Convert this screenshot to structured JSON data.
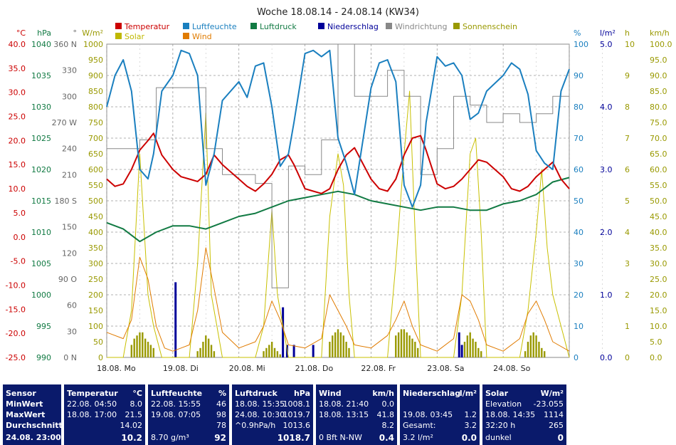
{
  "title": "Woche 18.08.14 - 24.08.14 (KW34)",
  "legend": [
    {
      "label": "Temperatur",
      "color": "#cc0000"
    },
    {
      "label": "Luftfeuchte",
      "color": "#1a7fbf"
    },
    {
      "label": "Luftdruck",
      "color": "#117a43"
    },
    {
      "label": "Niederschlag",
      "color": "#000099"
    },
    {
      "label": "Windrichtung",
      "color": "#888888"
    },
    {
      "label": "Sonnenschein",
      "color": "#999900"
    },
    {
      "label": "Solar",
      "color": "#bfb800"
    },
    {
      "label": "Wind",
      "color": "#e07b00"
    }
  ],
  "axes": {
    "temp": {
      "unit": "°C",
      "color": "#cc0000",
      "ticks": [
        "40.0",
        "35.0",
        "30.0",
        "25.0",
        "20.0",
        "15.0",
        "10.0",
        "5.0",
        "0.0",
        "-5.0",
        "-10.0",
        "-15.0",
        "-20.0",
        "-25.0"
      ]
    },
    "pressure": {
      "unit": "hPa",
      "color": "#117a43",
      "ticks": [
        "1040",
        "1035",
        "1030",
        "1025",
        "1020",
        "1015",
        "1010",
        "1005",
        "1000",
        "995",
        "990"
      ]
    },
    "winddir": {
      "unit": "°",
      "color": "#666666",
      "ticks": [
        "360 N",
        "330",
        "300",
        "270 W",
        "240",
        "210",
        "180 S",
        "150",
        "120",
        "90 O",
        "60",
        "30",
        "0 N"
      ]
    },
    "solar": {
      "unit": "W/m²",
      "color": "#999900",
      "ticks": [
        "1000",
        "950",
        "900",
        "850",
        "800",
        "750",
        "700",
        "650",
        "600",
        "550",
        "500",
        "450",
        "400",
        "350",
        "300",
        "250",
        "200",
        "150",
        "100",
        "50",
        "0"
      ]
    },
    "humidity": {
      "unit": "%",
      "color": "#1a7fbf",
      "ticks": [
        "100",
        "90",
        "80",
        "70",
        "60",
        "50",
        "40",
        "30",
        "20",
        "10",
        "0"
      ]
    },
    "rain": {
      "unit": "l/m²",
      "color": "#000099",
      "ticks": [
        "5.0",
        "4.0",
        "3.0",
        "2.0",
        "1.0",
        "0.0"
      ]
    },
    "sunshine": {
      "unit": "h",
      "color": "#999900",
      "ticks": [
        "10",
        "9",
        "8",
        "7",
        "6",
        "5",
        "4",
        "3",
        "2",
        "1",
        "0"
      ]
    },
    "wind": {
      "unit": "km/h",
      "color": "#999900",
      "ticks": [
        "100.0",
        "95.0",
        "90.0",
        "85.0",
        "80.0",
        "75.0",
        "70.0",
        "65.0",
        "60.0",
        "55.0",
        "50.0",
        "45.0",
        "40.0",
        "35.0",
        "30.0",
        "25.0",
        "20.0",
        "15.0",
        "10.0",
        "5.0",
        "0.0"
      ]
    }
  },
  "x_ticks": [
    "18.08. Mo",
    "19.08. Di",
    "20.08. Mi",
    "21.08. Do",
    "22.08. Fr",
    "23.08. Sa",
    "24.08. So"
  ],
  "chart_data": {
    "type": "line",
    "title": "Woche 18.08.14 - 24.08.14 (KW34)",
    "x_unit": "hours since 18.08. 00:00",
    "series": [
      {
        "name": "Temperatur",
        "unit": "°C",
        "x": [
          0,
          3,
          6,
          9,
          12,
          15,
          17,
          20,
          24,
          27,
          30,
          33,
          36,
          39,
          42,
          48,
          51,
          54,
          57,
          60,
          63,
          66,
          68,
          72,
          75,
          78,
          81,
          84,
          87,
          90,
          96,
          99,
          102,
          105,
          108,
          111,
          114,
          116,
          120,
          123,
          126,
          129,
          132,
          135,
          138,
          144,
          147,
          150,
          153,
          156,
          159,
          162,
          165,
          168
        ],
        "y": [
          12,
          10.5,
          11,
          14,
          18,
          20,
          21.5,
          17,
          14,
          12.5,
          12,
          11.5,
          13,
          17,
          15,
          12,
          10.5,
          9.5,
          11,
          13,
          16,
          17,
          15,
          10,
          9.5,
          9,
          10,
          14,
          17,
          18.5,
          12,
          10,
          9.5,
          12,
          17,
          20.5,
          21,
          18,
          11,
          10,
          10.5,
          12,
          14,
          16,
          15.5,
          12.5,
          10,
          9.5,
          10.5,
          12.5,
          14,
          15.5,
          12,
          10
        ]
      },
      {
        "name": "Luftfeuchte",
        "unit": "%",
        "x": [
          0,
          3,
          6,
          9,
          12,
          15,
          17,
          20,
          24,
          27,
          30,
          33,
          36,
          39,
          42,
          48,
          51,
          54,
          57,
          60,
          63,
          66,
          68,
          72,
          75,
          78,
          81,
          84,
          87,
          90,
          96,
          99,
          102,
          105,
          108,
          111,
          114,
          116,
          120,
          123,
          126,
          129,
          132,
          135,
          138,
          144,
          147,
          150,
          153,
          156,
          159,
          162,
          165,
          168
        ],
        "y": [
          80,
          90,
          95,
          85,
          60,
          57,
          65,
          85,
          90,
          98,
          97,
          90,
          55,
          65,
          82,
          88,
          83,
          93,
          94,
          80,
          61,
          65,
          75,
          97,
          98,
          96,
          98,
          70,
          62,
          52,
          86,
          94,
          95,
          88,
          55,
          48,
          55,
          75,
          96,
          93,
          94,
          90,
          76,
          78,
          85,
          90,
          94,
          92,
          84,
          66,
          62,
          60,
          85,
          92
        ]
      },
      {
        "name": "Luftdruck",
        "unit": "hPa",
        "x": [
          0,
          6,
          12,
          18,
          24,
          30,
          36,
          42,
          48,
          54,
          60,
          66,
          72,
          78,
          84,
          90,
          96,
          102,
          108,
          114,
          120,
          126,
          132,
          138,
          144,
          150,
          156,
          162,
          168
        ],
        "y": [
          1011.5,
          1010.5,
          1008.5,
          1010,
          1011,
          1011,
          1010.5,
          1011.5,
          1012.5,
          1013,
          1014,
          1015,
          1015.5,
          1016,
          1016.5,
          1016,
          1015,
          1014.5,
          1014,
          1013.5,
          1014,
          1014,
          1013.5,
          1013.5,
          1014.5,
          1015,
          1016,
          1018,
          1018.7
        ]
      },
      {
        "name": "Windrichtung",
        "unit": "°",
        "x": [
          0,
          6,
          12,
          18,
          24,
          30,
          36,
          42,
          48,
          54,
          60,
          66,
          72,
          78,
          84,
          90,
          96,
          102,
          108,
          114,
          120,
          126,
          132,
          138,
          144,
          150,
          156,
          162,
          168
        ],
        "y": [
          240,
          240,
          250,
          310,
          310,
          310,
          240,
          210,
          210,
          200,
          80,
          220,
          210,
          250,
          360,
          300,
          300,
          330,
          300,
          210,
          240,
          300,
          290,
          270,
          280,
          270,
          280,
          300,
          280
        ]
      },
      {
        "name": "Solar",
        "unit": "W/m²",
        "x": [
          0,
          6,
          9,
          12,
          15,
          17,
          20,
          24,
          30,
          33,
          36,
          38,
          40,
          42,
          48,
          54,
          57,
          60,
          62,
          64,
          66,
          72,
          78,
          81,
          84,
          86,
          88,
          90,
          96,
          102,
          105,
          108,
          110,
          112,
          114,
          120,
          126,
          129,
          132,
          134,
          136,
          138,
          144,
          150,
          153,
          156,
          158,
          160,
          162,
          168
        ],
        "y": [
          0,
          0,
          150,
          650,
          200,
          100,
          0,
          0,
          0,
          300,
          780,
          200,
          100,
          0,
          0,
          0,
          100,
          470,
          200,
          100,
          0,
          0,
          0,
          450,
          650,
          550,
          200,
          0,
          0,
          0,
          300,
          650,
          850,
          400,
          0,
          0,
          0,
          200,
          650,
          700,
          400,
          0,
          0,
          0,
          150,
          400,
          600,
          350,
          200,
          0
        ]
      },
      {
        "name": "Wind",
        "unit": "km/h",
        "x": [
          0,
          6,
          9,
          12,
          15,
          18,
          21,
          24,
          30,
          33,
          36,
          39,
          42,
          48,
          54,
          57,
          60,
          63,
          66,
          72,
          78,
          81,
          84,
          87,
          90,
          96,
          102,
          105,
          108,
          111,
          114,
          120,
          126,
          129,
          132,
          135,
          138,
          144,
          150,
          153,
          156,
          159,
          162,
          168
        ],
        "y": [
          8,
          6,
          12,
          32,
          25,
          10,
          3,
          2,
          4,
          15,
          35,
          22,
          8,
          3,
          5,
          10,
          18,
          12,
          4,
          3,
          6,
          20,
          15,
          10,
          4,
          3,
          7,
          12,
          18,
          10,
          4,
          2,
          6,
          20,
          18,
          12,
          4,
          2,
          6,
          14,
          18,
          12,
          5,
          2
        ]
      }
    ],
    "rain_bars": {
      "name": "Niederschlag",
      "unit": "l/m²",
      "x": [
        25,
        64,
        65.5,
        68,
        75,
        128,
        129
      ],
      "y": [
        1.2,
        0.8,
        0.2,
        0.2,
        0.2,
        0.4,
        0.2
      ]
    },
    "sunshine_bars": {
      "name": "Sonnenschein",
      "unit": "h",
      "x": [
        9,
        10,
        11,
        12,
        13,
        14,
        15,
        16,
        17,
        33,
        34,
        35,
        36,
        37,
        38,
        39,
        57,
        58,
        59,
        60,
        61,
        62,
        63,
        64,
        81,
        82,
        83,
        84,
        85,
        86,
        87,
        88,
        105,
        106,
        107,
        108,
        109,
        110,
        111,
        112,
        113,
        129,
        130,
        131,
        132,
        133,
        134,
        135,
        136,
        152,
        153,
        154,
        155,
        156,
        157,
        158,
        159
      ],
      "y": [
        0.4,
        0.6,
        0.7,
        0.8,
        0.8,
        0.6,
        0.5,
        0.4,
        0.3,
        0.2,
        0.3,
        0.5,
        0.7,
        0.6,
        0.4,
        0.2,
        0.2,
        0.3,
        0.4,
        0.5,
        0.3,
        0.2,
        0.1,
        0.1,
        0.5,
        0.7,
        0.8,
        0.9,
        0.8,
        0.7,
        0.5,
        0.3,
        0.7,
        0.8,
        0.9,
        0.9,
        0.8,
        0.7,
        0.6,
        0.5,
        0.3,
        0.3,
        0.5,
        0.7,
        0.8,
        0.6,
        0.5,
        0.3,
        0.2,
        0.2,
        0.5,
        0.7,
        0.8,
        0.7,
        0.5,
        0.3,
        0.2
      ]
    },
    "xlim": [
      0,
      168
    ],
    "ylim": {
      "temp": [
        -25,
        40
      ],
      "humidity": [
        0,
        100
      ],
      "pressure": [
        990,
        1040
      ],
      "winddir": [
        0,
        360
      ],
      "solar": [
        0,
        1000
      ],
      "rain": [
        0,
        5
      ],
      "wind": [
        0,
        100
      ]
    },
    "grid": true
  },
  "table": [
    {
      "header": [
        "Sensor",
        ""
      ],
      "rows": [
        [
          "MinWert",
          ""
        ],
        [
          "MaxWert",
          ""
        ],
        [
          "Durchschnitt",
          ""
        ]
      ],
      "footer": [
        "24.08. 23:00",
        ""
      ]
    },
    {
      "header": [
        "Temperatur",
        "°C"
      ],
      "rows": [
        [
          "22.08.  04:50",
          "8.0"
        ],
        [
          "18.08.  17:00",
          "21.5"
        ],
        [
          "",
          "14.02"
        ]
      ],
      "footer": [
        "",
        "10.2"
      ]
    },
    {
      "header": [
        "Luftfeuchte",
        "%"
      ],
      "rows": [
        [
          "22.08.  15:55",
          "46"
        ],
        [
          "19.08.  07:05",
          "98"
        ],
        [
          "",
          "78"
        ]
      ],
      "footer": [
        "8.70 g/m³",
        "92"
      ]
    },
    {
      "header": [
        "Luftdruck",
        "hPa"
      ],
      "rows": [
        [
          "18.08.  15:35",
          "1008.1"
        ],
        [
          "24.08.  10:30",
          "1019.7"
        ],
        [
          "^0.9hPa/h",
          "1013.6"
        ]
      ],
      "footer": [
        "",
        "1018.7"
      ]
    },
    {
      "header": [
        "Wind",
        "km/h"
      ],
      "rows": [
        [
          "18.08.  21:40",
          "0.0"
        ],
        [
          "18.08.  13:15",
          "41.8"
        ],
        [
          "",
          "8.2"
        ]
      ],
      "footer": [
        "0 Bft N-NW",
        "0.4"
      ]
    },
    {
      "header": [
        "Niederschlag",
        "l/m²"
      ],
      "rows": [
        [
          "",
          ""
        ],
        [
          "19.08.  03:45",
          "1.2"
        ],
        [
          "Gesamt:",
          "3.2"
        ]
      ],
      "footer": [
        "3.2 l/m²",
        "0.0"
      ]
    },
    {
      "header": [
        "Solar",
        "W/m²"
      ],
      "rows": [
        [
          "Elevation",
          "-23.055"
        ],
        [
          "18.08.  14:35",
          "1114"
        ],
        [
          "32:20 h",
          "265"
        ]
      ],
      "footer": [
        "dunkel",
        "0"
      ]
    }
  ]
}
